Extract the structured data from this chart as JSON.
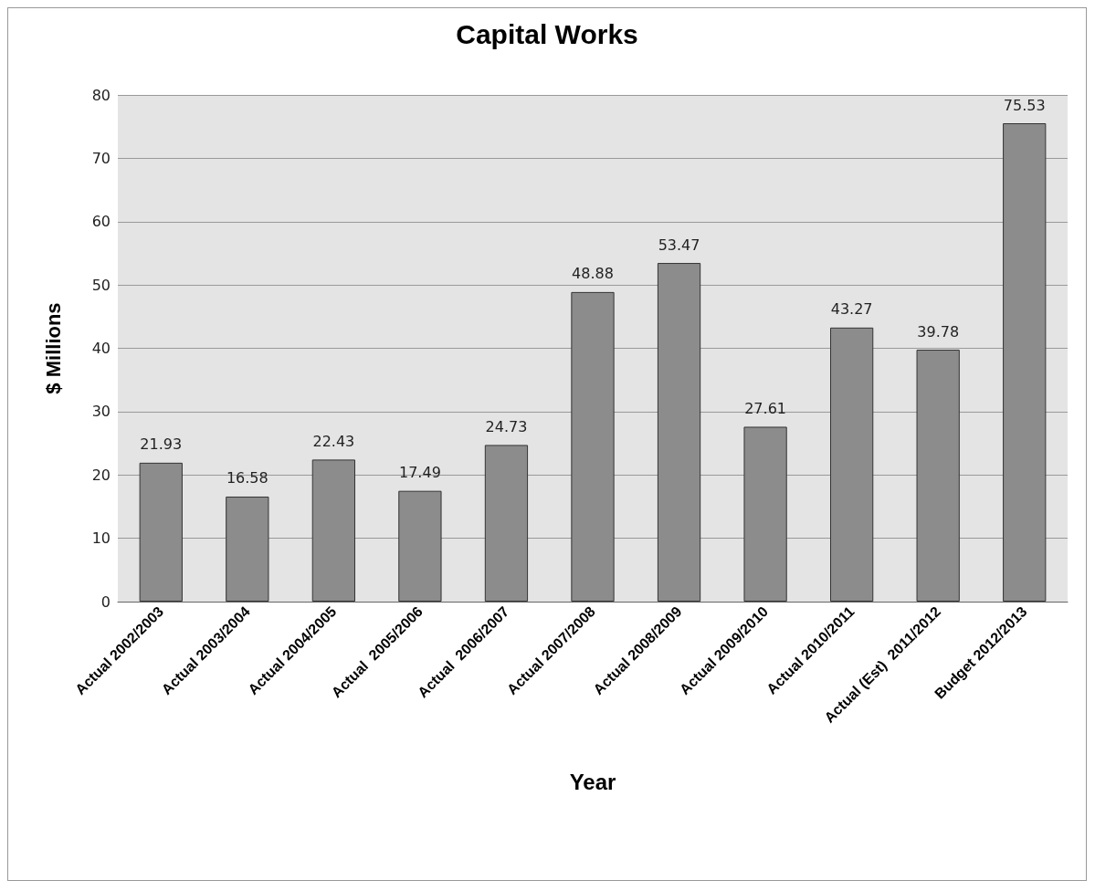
{
  "chart_data": {
    "type": "bar",
    "title": "Capital Works",
    "xlabel": "Year",
    "ylabel": "$ Millions",
    "categories": [
      "Actual 2002/2003",
      "Actual 2003/2004",
      "Actual 2004/2005",
      "Actual  2005/2006",
      "Actual  2006/2007",
      "Actual 2007/2008",
      "Actual 2008/2009",
      "Actual 2009/2010",
      "Actual 2010/2011",
      "Actual (Est)  2011/2012",
      "Budget 2012/2013"
    ],
    "values": [
      21.93,
      16.58,
      22.43,
      17.49,
      24.73,
      48.88,
      53.47,
      27.61,
      43.27,
      39.78,
      75.53
    ],
    "color": "#8c8c8c",
    "ylim": [
      0,
      80
    ],
    "yticks": [
      0,
      10,
      20,
      30,
      40,
      50,
      60,
      70,
      80
    ],
    "grid": "y",
    "data_labels": true
  }
}
